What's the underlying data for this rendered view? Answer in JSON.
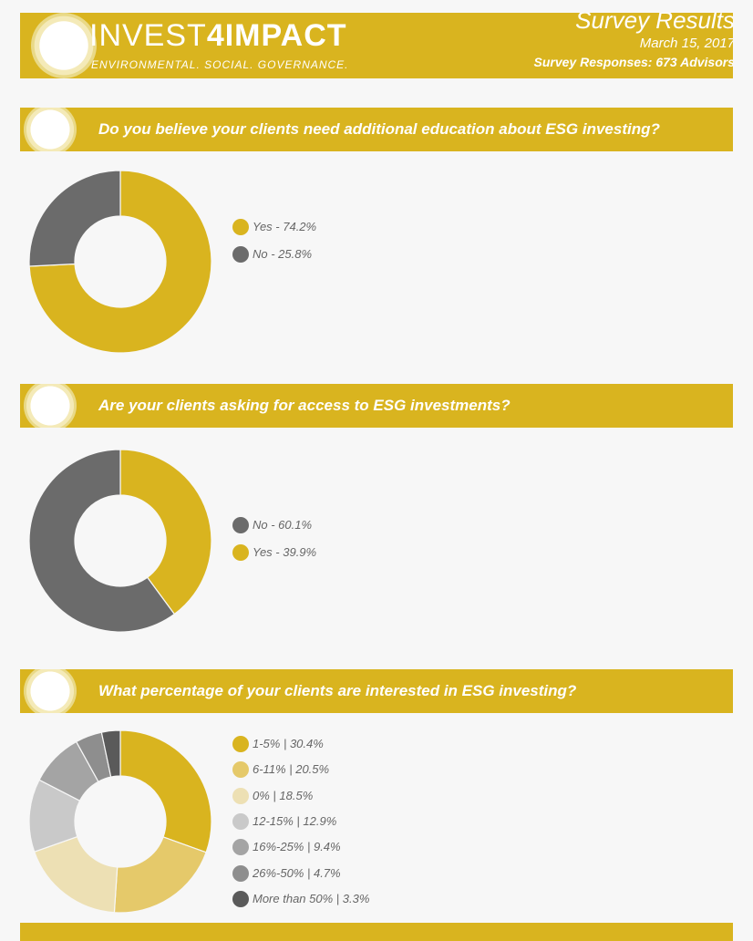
{
  "header": {
    "brand_prefix": "INVEST",
    "brand_suffix": "4IMPACT",
    "tagline": "ENVIRONMENTAL. SOCIAL. GOVERNANCE.",
    "report_title": "Survey Results",
    "date": "March 15, 2017",
    "responses": "Survey Responses: 673 Advisors"
  },
  "colors": {
    "gold": "#d9b41f",
    "dark_gray": "#6b6b6b",
    "light_gold": "#e5c96a",
    "cream": "#ede0b4",
    "light_gray": "#c9c9c9",
    "mid_gray": "#a4a4a4",
    "gray": "#8e8e8e",
    "charcoal": "#5a5a5a"
  },
  "chart_data": [
    {
      "type": "pie",
      "title": "Do you believe your clients need additional education about ESG investing?",
      "categories": [
        "Yes",
        "No"
      ],
      "values": [
        74.2,
        25.8
      ],
      "legend_labels": [
        "Yes - 74.2%",
        "No - 25.8%"
      ],
      "colors": [
        "#d9b41f",
        "#6b6b6b"
      ],
      "legend": "right"
    },
    {
      "type": "pie",
      "title": "Are your clients asking for access to ESG investments?",
      "categories": [
        "Yes",
        "No"
      ],
      "values": [
        39.9,
        60.1
      ],
      "legend_order": [
        1,
        0
      ],
      "legend_labels": [
        "No - 60.1%",
        "Yes - 39.9%"
      ],
      "colors": [
        "#d9b41f",
        "#6b6b6b"
      ],
      "legend": "right"
    },
    {
      "type": "pie",
      "title": "What percentage of your clients are interested in ESG investing?",
      "categories": [
        "1-5%",
        "6-11%",
        "0%",
        "12-15%",
        "16%-25%",
        "26%-50%",
        "More than 50%"
      ],
      "values": [
        30.4,
        20.5,
        18.5,
        12.9,
        9.4,
        4.7,
        3.3
      ],
      "legend_labels": [
        "1-5%   | 30.4%",
        "6-11%   | 20.5%",
        "0%   | 18.5%",
        "12-15% | 12.9%",
        "16%-25%   | 9.4%",
        "26%-50%   | 4.7%",
        "More than 50%  | 3.3%"
      ],
      "colors": [
        "#d9b41f",
        "#e5c96a",
        "#ede0b4",
        "#c9c9c9",
        "#a4a4a4",
        "#8e8e8e",
        "#5a5a5a"
      ],
      "legend": "right"
    }
  ]
}
